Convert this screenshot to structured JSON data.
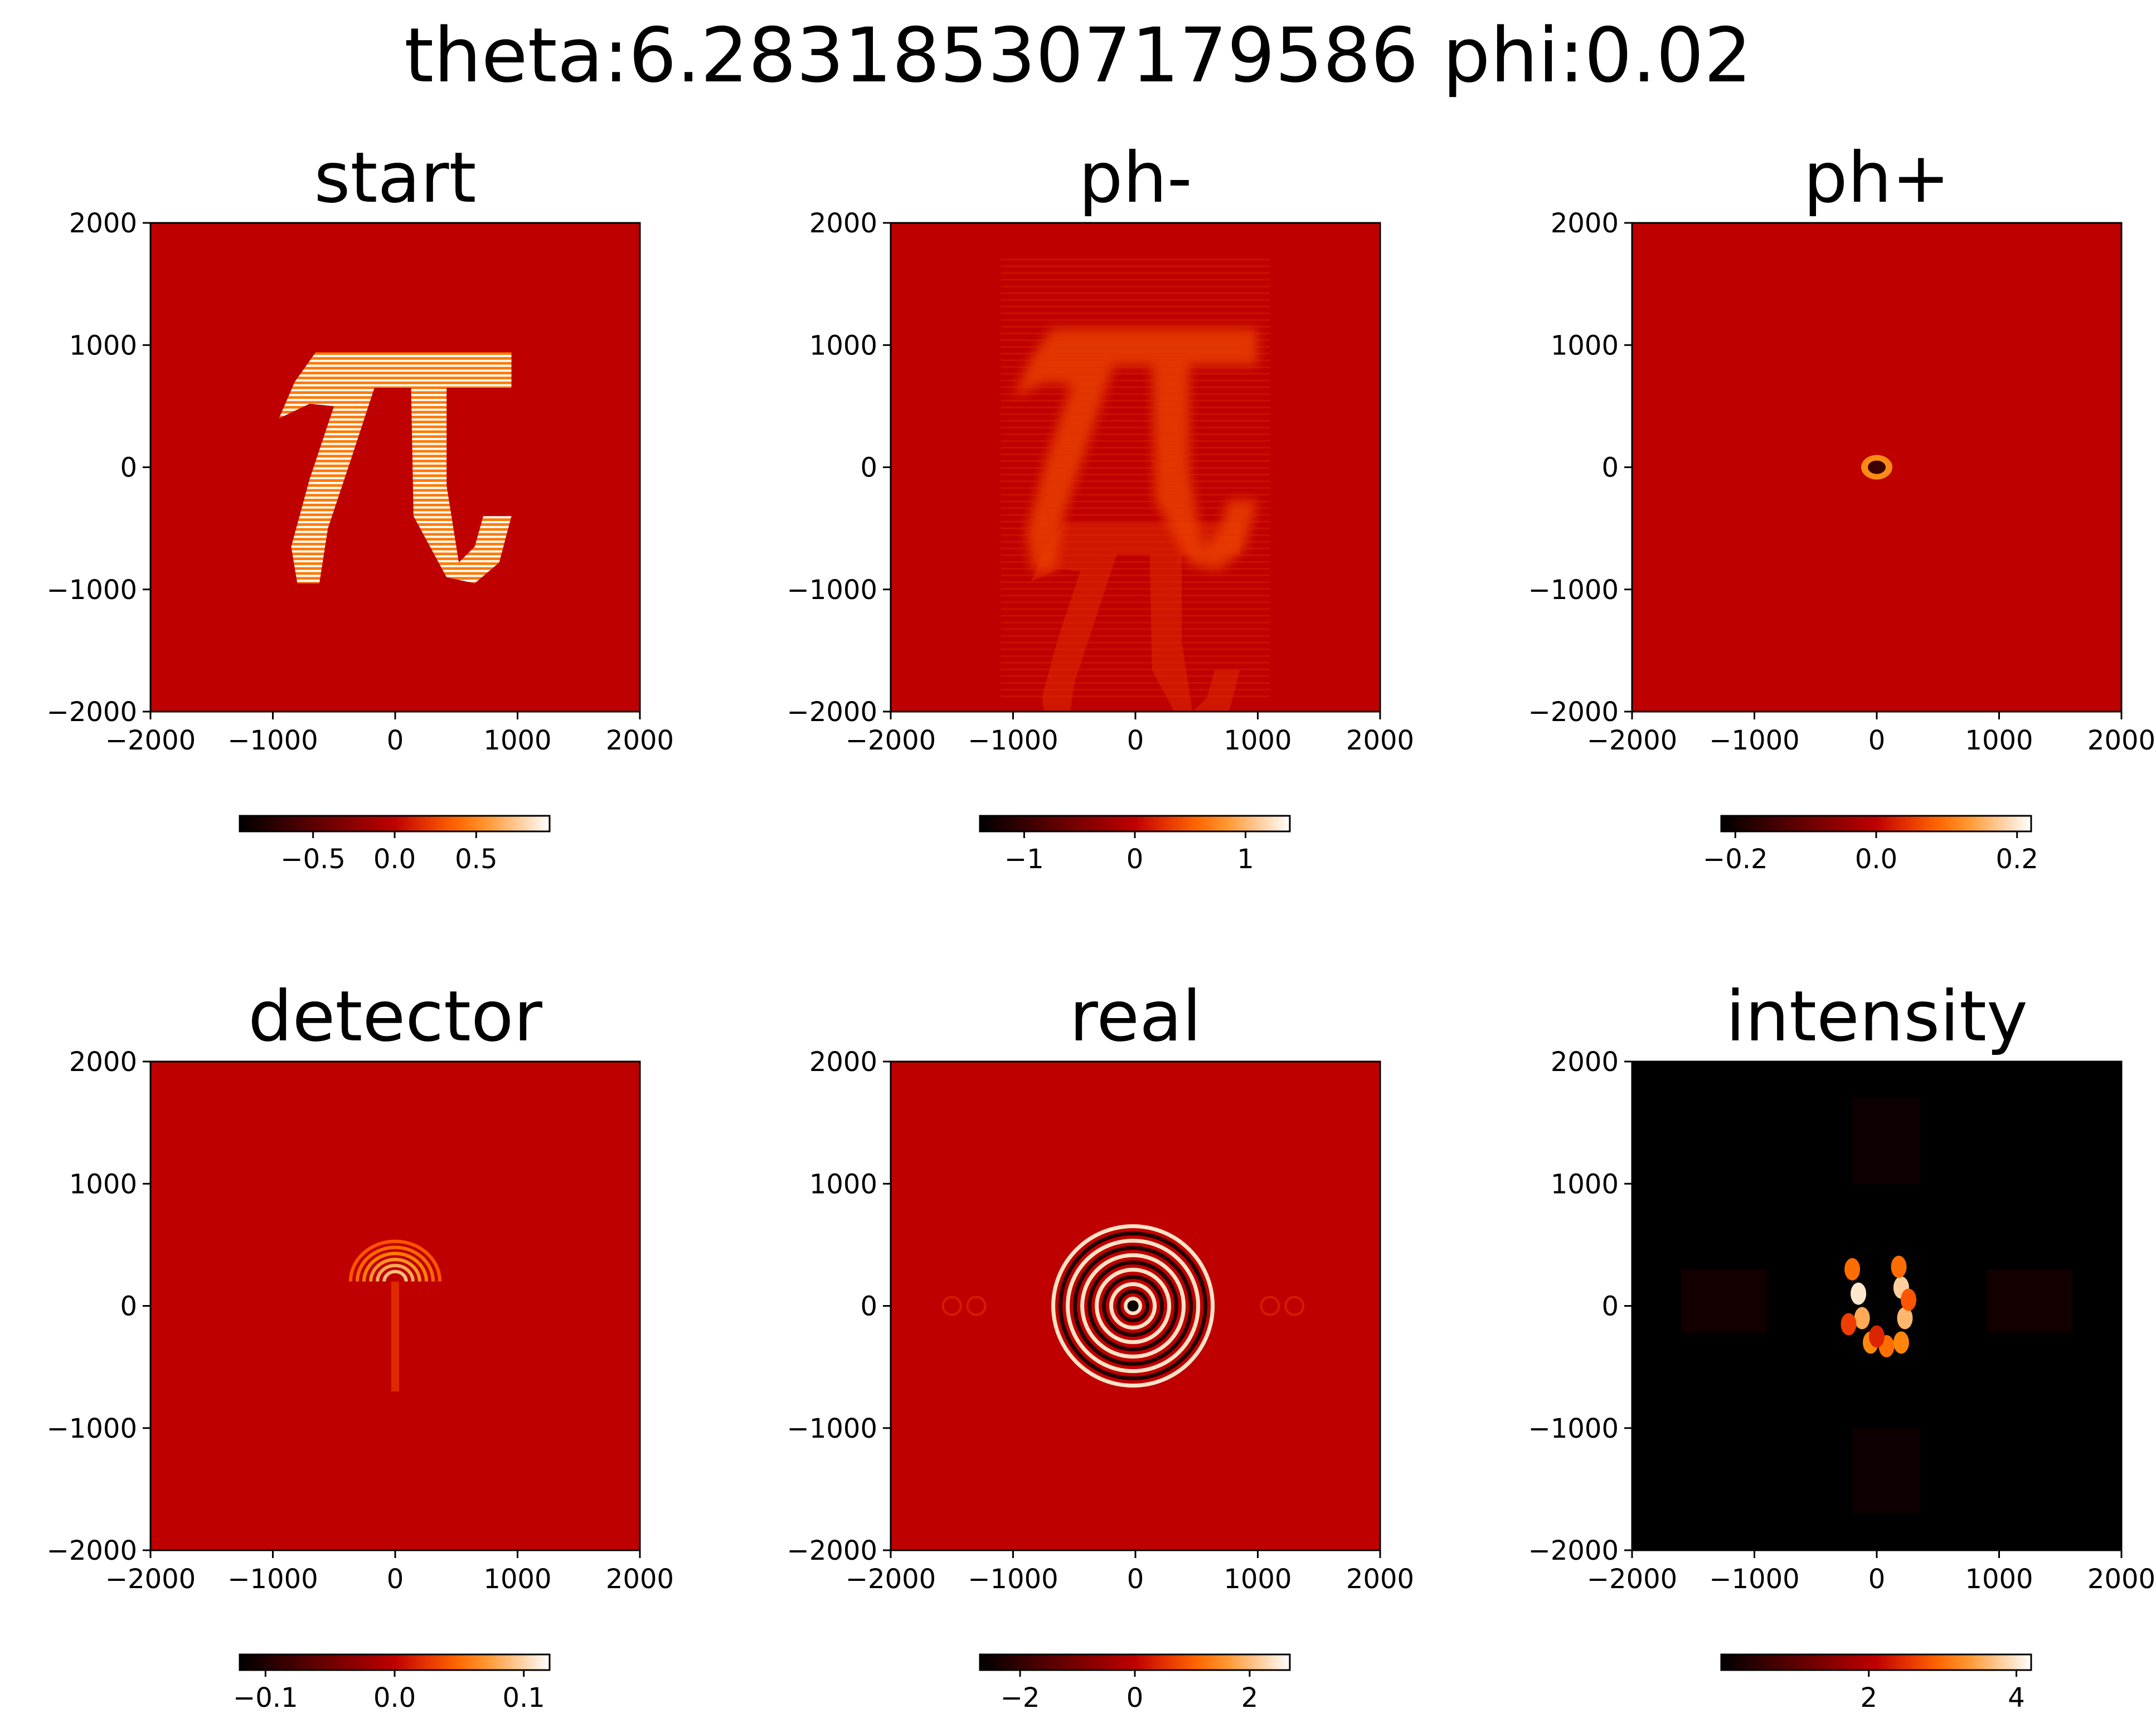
{
  "figure_title": "theta:6.283185307179586 phi:0.02",
  "chart_data": [
    {
      "type": "heatmap",
      "title": "start",
      "colormap": "gist_heat",
      "xlim": [
        -2000,
        2000
      ],
      "ylim": [
        -2000,
        2000
      ],
      "xticks": [
        "−2000",
        "−1000",
        "0",
        "1000",
        "2000"
      ],
      "yticks": [
        "2000",
        "1000",
        "0",
        "−1000",
        "−2000"
      ],
      "colorbar": {
        "range": [
          -0.95,
          0.95
        ],
        "ticks": [
          {
            "v": -0.5,
            "label": "−0.5"
          },
          {
            "v": 0.0,
            "label": "0.0"
          },
          {
            "v": 0.5,
            "label": "0.5"
          }
        ]
      },
      "background_value": 0.0,
      "content": "pi-glyph striped"
    },
    {
      "type": "heatmap",
      "title": "ph-",
      "colormap": "gist_heat",
      "xlim": [
        -2000,
        2000
      ],
      "ylim": [
        -2000,
        2000
      ],
      "xticks": [
        "−2000",
        "−1000",
        "0",
        "1000",
        "2000"
      ],
      "yticks": [
        "2000",
        "1000",
        "0",
        "−1000",
        "−2000"
      ],
      "colorbar": {
        "range": [
          -1.4,
          1.4
        ],
        "ticks": [
          {
            "v": -1,
            "label": "−1"
          },
          {
            "v": 0,
            "label": "0"
          },
          {
            "v": 1,
            "label": "1"
          }
        ]
      },
      "background_value": 0.0,
      "content": "pi-glyph diffracted with faint mirror"
    },
    {
      "type": "heatmap",
      "title": "ph+",
      "colormap": "gist_heat",
      "xlim": [
        -2000,
        2000
      ],
      "ylim": [
        -2000,
        2000
      ],
      "xticks": [
        "−2000",
        "−1000",
        "0",
        "1000",
        "2000"
      ],
      "yticks": [
        "2000",
        "1000",
        "0",
        "−1000",
        "−2000"
      ],
      "colorbar": {
        "range": [
          -0.22,
          0.22
        ],
        "ticks": [
          {
            "v": -0.2,
            "label": "−0.2"
          },
          {
            "v": 0.0,
            "label": "0.0"
          },
          {
            "v": 0.2,
            "label": "0.2"
          }
        ]
      },
      "background_value": 0.0,
      "content": "small spot at center"
    },
    {
      "type": "heatmap",
      "title": "detector",
      "colormap": "gist_heat",
      "xlim": [
        -2000,
        2000
      ],
      "ylim": [
        -2000,
        2000
      ],
      "xticks": [
        "−2000",
        "−1000",
        "0",
        "1000",
        "2000"
      ],
      "yticks": [
        "2000",
        "1000",
        "0",
        "−1000",
        "−2000"
      ],
      "colorbar": {
        "range": [
          -0.12,
          0.12
        ],
        "ticks": [
          {
            "v": -0.1,
            "label": "−0.1"
          },
          {
            "v": 0.0,
            "label": "0.0"
          },
          {
            "v": 0.1,
            "label": "0.1"
          }
        ]
      },
      "background_value": 0.0,
      "content": "arc fringes near center"
    },
    {
      "type": "heatmap",
      "title": "real",
      "colormap": "gist_heat",
      "xlim": [
        -2000,
        2000
      ],
      "ylim": [
        -2000,
        2000
      ],
      "xticks": [
        "−2000",
        "−1000",
        "0",
        "1000",
        "2000"
      ],
      "yticks": [
        "2000",
        "1000",
        "0",
        "−1000",
        "−2000"
      ],
      "colorbar": {
        "range": [
          -2.7,
          2.7
        ],
        "ticks": [
          {
            "v": -2,
            "label": "−2"
          },
          {
            "v": 0,
            "label": "0"
          },
          {
            "v": 2,
            "label": "2"
          }
        ]
      },
      "background_value": 0.0,
      "content": "concentric ring pattern at center"
    },
    {
      "type": "heatmap",
      "title": "intensity",
      "colormap": "gist_heat",
      "xlim": [
        -2000,
        2000
      ],
      "ylim": [
        -2000,
        2000
      ],
      "xticks": [
        "−2000",
        "−1000",
        "0",
        "1000",
        "2000"
      ],
      "yticks": [
        "2000",
        "1000",
        "0",
        "−1000",
        "−2000"
      ],
      "colorbar": {
        "range": [
          0.0,
          4.2
        ],
        "ticks": [
          {
            "v": 2,
            "label": "2"
          },
          {
            "v": 4,
            "label": "4"
          }
        ]
      },
      "background_value": 0.0,
      "content": "bright speckled blob at center with faint cross"
    }
  ]
}
